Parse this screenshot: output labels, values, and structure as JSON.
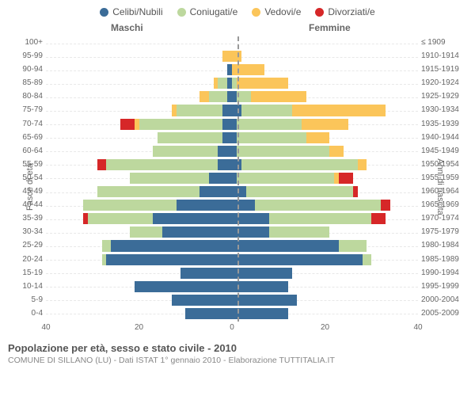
{
  "chart": {
    "type": "population-pyramid",
    "legend": [
      {
        "label": "Celibi/Nubili",
        "color": "#3b6c98"
      },
      {
        "label": "Coniugati/e",
        "color": "#bdd89e"
      },
      {
        "label": "Vedovi/e",
        "color": "#fbc55a"
      },
      {
        "label": "Divorziati/e",
        "color": "#d62728"
      }
    ],
    "header_male": "Maschi",
    "header_female": "Femmine",
    "y_left": "Fasce di età",
    "y_right": "Anni di nascita",
    "xlim": 40,
    "xticks": [
      40,
      20,
      0,
      20,
      40
    ],
    "background_color": "#ffffff",
    "grid_color": "#e8e8e8",
    "center_line_color": "#999999",
    "label_fontsize": 11,
    "tick_fontsize": 10,
    "rows": [
      {
        "age": "100+",
        "birth": "≤ 1909",
        "m": {
          "cel": 0,
          "con": 0,
          "ved": 0,
          "div": 0
        },
        "f": {
          "cel": 0,
          "con": 0,
          "ved": 0,
          "div": 0
        }
      },
      {
        "age": "95-99",
        "birth": "1910-1914",
        "m": {
          "cel": 0,
          "con": 0,
          "ved": 2,
          "div": 0
        },
        "f": {
          "cel": 0,
          "con": 0,
          "ved": 2,
          "div": 0
        }
      },
      {
        "age": "90-94",
        "birth": "1915-1919",
        "m": {
          "cel": 1,
          "con": 0,
          "ved": 0,
          "div": 0
        },
        "f": {
          "cel": 0,
          "con": 0,
          "ved": 7,
          "div": 0
        }
      },
      {
        "age": "85-89",
        "birth": "1920-1924",
        "m": {
          "cel": 1,
          "con": 2,
          "ved": 1,
          "div": 0
        },
        "f": {
          "cel": 0,
          "con": 1,
          "ved": 11,
          "div": 0
        }
      },
      {
        "age": "80-84",
        "birth": "1925-1929",
        "m": {
          "cel": 1,
          "con": 4,
          "ved": 2,
          "div": 0
        },
        "f": {
          "cel": 1,
          "con": 3,
          "ved": 12,
          "div": 0
        }
      },
      {
        "age": "75-79",
        "birth": "1930-1934",
        "m": {
          "cel": 2,
          "con": 10,
          "ved": 1,
          "div": 0
        },
        "f": {
          "cel": 2,
          "con": 11,
          "ved": 20,
          "div": 0
        }
      },
      {
        "age": "70-74",
        "birth": "1935-1939",
        "m": {
          "cel": 2,
          "con": 18,
          "ved": 1,
          "div": 3
        },
        "f": {
          "cel": 1,
          "con": 14,
          "ved": 10,
          "div": 0
        }
      },
      {
        "age": "65-69",
        "birth": "1940-1944",
        "m": {
          "cel": 2,
          "con": 14,
          "ved": 0,
          "div": 0
        },
        "f": {
          "cel": 1,
          "con": 15,
          "ved": 5,
          "div": 0
        }
      },
      {
        "age": "60-64",
        "birth": "1945-1949",
        "m": {
          "cel": 3,
          "con": 14,
          "ved": 0,
          "div": 0
        },
        "f": {
          "cel": 1,
          "con": 20,
          "ved": 3,
          "div": 0
        }
      },
      {
        "age": "55-59",
        "birth": "1950-1954",
        "m": {
          "cel": 3,
          "con": 24,
          "ved": 0,
          "div": 2
        },
        "f": {
          "cel": 2,
          "con": 25,
          "ved": 2,
          "div": 0
        }
      },
      {
        "age": "50-54",
        "birth": "1955-1959",
        "m": {
          "cel": 5,
          "con": 17,
          "ved": 0,
          "div": 0
        },
        "f": {
          "cel": 1,
          "con": 21,
          "ved": 1,
          "div": 3
        }
      },
      {
        "age": "45-49",
        "birth": "1960-1964",
        "m": {
          "cel": 7,
          "con": 22,
          "ved": 0,
          "div": 0
        },
        "f": {
          "cel": 3,
          "con": 23,
          "ved": 0,
          "div": 1
        }
      },
      {
        "age": "40-44",
        "birth": "1965-1969",
        "m": {
          "cel": 12,
          "con": 20,
          "ved": 0,
          "div": 0
        },
        "f": {
          "cel": 5,
          "con": 27,
          "ved": 0,
          "div": 2
        }
      },
      {
        "age": "35-39",
        "birth": "1970-1974",
        "m": {
          "cel": 17,
          "con": 14,
          "ved": 0,
          "div": 1
        },
        "f": {
          "cel": 8,
          "con": 22,
          "ved": 0,
          "div": 3
        }
      },
      {
        "age": "30-34",
        "birth": "1975-1979",
        "m": {
          "cel": 15,
          "con": 7,
          "ved": 0,
          "div": 0
        },
        "f": {
          "cel": 8,
          "con": 13,
          "ved": 0,
          "div": 0
        }
      },
      {
        "age": "25-29",
        "birth": "1980-1984",
        "m": {
          "cel": 26,
          "con": 2,
          "ved": 0,
          "div": 0
        },
        "f": {
          "cel": 23,
          "con": 6,
          "ved": 0,
          "div": 0
        }
      },
      {
        "age": "20-24",
        "birth": "1985-1989",
        "m": {
          "cel": 27,
          "con": 1,
          "ved": 0,
          "div": 0
        },
        "f": {
          "cel": 28,
          "con": 2,
          "ved": 0,
          "div": 0
        }
      },
      {
        "age": "15-19",
        "birth": "1990-1994",
        "m": {
          "cel": 11,
          "con": 0,
          "ved": 0,
          "div": 0
        },
        "f": {
          "cel": 13,
          "con": 0,
          "ved": 0,
          "div": 0
        }
      },
      {
        "age": "10-14",
        "birth": "1995-1999",
        "m": {
          "cel": 21,
          "con": 0,
          "ved": 0,
          "div": 0
        },
        "f": {
          "cel": 12,
          "con": 0,
          "ved": 0,
          "div": 0
        }
      },
      {
        "age": "5-9",
        "birth": "2000-2004",
        "m": {
          "cel": 13,
          "con": 0,
          "ved": 0,
          "div": 0
        },
        "f": {
          "cel": 14,
          "con": 0,
          "ved": 0,
          "div": 0
        }
      },
      {
        "age": "0-4",
        "birth": "2005-2009",
        "m": {
          "cel": 10,
          "con": 0,
          "ved": 0,
          "div": 0
        },
        "f": {
          "cel": 12,
          "con": 0,
          "ved": 0,
          "div": 0
        }
      }
    ]
  },
  "footer": {
    "title": "Popolazione per età, sesso e stato civile - 2010",
    "subtitle": "COMUNE DI SILLANO (LU) - Dati ISTAT 1° gennaio 2010 - Elaborazione TUTTITALIA.IT"
  }
}
